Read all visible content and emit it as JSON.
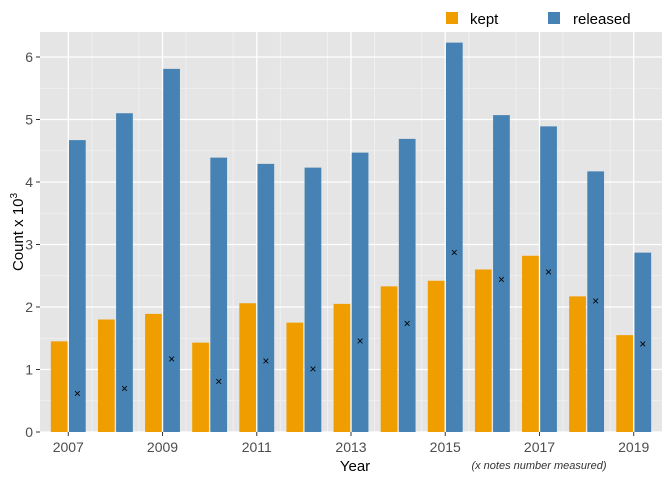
{
  "chart_data": {
    "type": "bar",
    "x": [
      2007,
      2008,
      2009,
      2010,
      2011,
      2012,
      2013,
      2014,
      2015,
      2016,
      2017,
      2018,
      2019
    ],
    "x_tick_labels": [
      "2007",
      "2009",
      "2011",
      "2013",
      "2015",
      "2017",
      "2019"
    ],
    "y_ticks": [
      0,
      1,
      2,
      3,
      4,
      5,
      6
    ],
    "ylim": [
      0,
      6.4
    ],
    "xlabel": "Year",
    "ylabel": "Count x 10",
    "ylabel_exponent": "3",
    "note": "(x notes number measured)",
    "legend_position": "top-right",
    "grid": true,
    "series": [
      {
        "name": "kept",
        "color": "#F09D00",
        "values": [
          1.45,
          1.8,
          1.89,
          1.43,
          2.06,
          1.75,
          2.05,
          2.33,
          2.42,
          2.6,
          2.82,
          2.17,
          1.55
        ]
      },
      {
        "name": "released",
        "color": "#4682B4",
        "values": [
          4.67,
          5.1,
          5.81,
          4.39,
          4.29,
          4.23,
          4.47,
          4.69,
          6.23,
          5.07,
          4.89,
          4.17,
          2.87
        ]
      }
    ],
    "measured": {
      "marker": "×",
      "values": [
        0.62,
        0.7,
        1.17,
        0.81,
        1.14,
        1.01,
        1.46,
        1.74,
        2.87,
        2.44,
        2.56,
        2.1,
        1.41
      ]
    }
  }
}
